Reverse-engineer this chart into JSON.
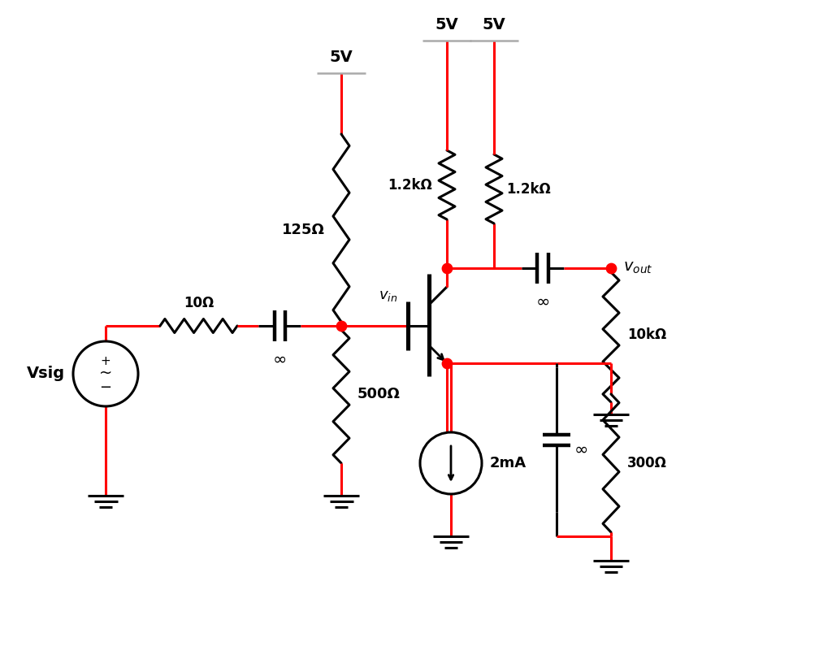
{
  "bg": "#ffffff",
  "red": "#ff0000",
  "black": "#000000",
  "gray": "#aaaaaa",
  "lw": 2.2,
  "Rs": "10Ω",
  "R1": "125Ω",
  "R2": "500Ω",
  "Rc": "1.2kΩ",
  "Rl": "10kΩ",
  "Re": "300Ω",
  "Is": "2mA",
  "Vsig_lbl": "Vsig",
  "vin_lbl": "$v_{in}$",
  "vout_lbl": "$\\mathbf{\\mathit{v}}_{out}$",
  "Vdd": "5V",
  "inf": "∞",
  "fig_w": 10.24,
  "fig_h": 8.11
}
